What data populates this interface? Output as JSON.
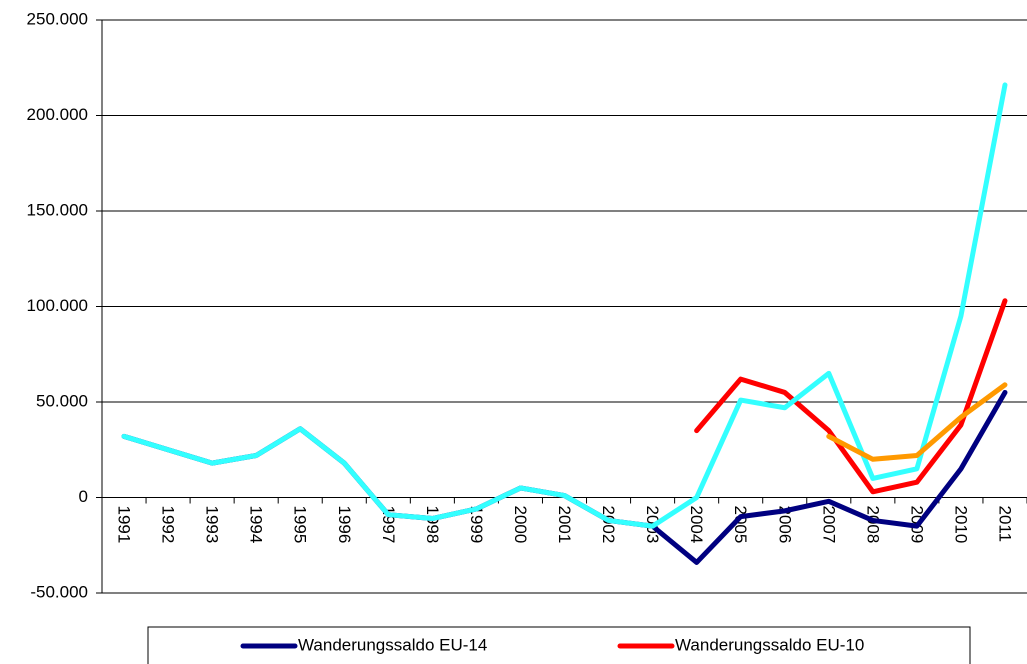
{
  "chart_data": {
    "type": "line",
    "categories": [
      "1991",
      "1992",
      "1993",
      "1994",
      "1995",
      "1996",
      "1997",
      "1998",
      "1999",
      "2000",
      "2001",
      "2002",
      "2003",
      "2004",
      "2005",
      "2006",
      "2007",
      "2008",
      "2009",
      "2010",
      "2011"
    ],
    "series": [
      {
        "name": "Wanderungssaldo EU-14",
        "color": "#000080",
        "values": [
          32000,
          25000,
          18000,
          22000,
          36000,
          18000,
          -9000,
          -11000,
          -6000,
          5000,
          1000,
          -12000,
          -15000,
          -34000,
          -10000,
          -7000,
          -2000,
          -12000,
          -15000,
          15000,
          55000
        ]
      },
      {
        "name": "Wanderungssaldo EU-10",
        "color": "#ff0000",
        "values": [
          null,
          null,
          null,
          null,
          null,
          null,
          null,
          null,
          null,
          null,
          null,
          null,
          null,
          35000,
          62000,
          55000,
          35000,
          3000,
          8000,
          38000,
          103000
        ]
      },
      {
        "color": "#33ffff",
        "values": [
          32000,
          25000,
          18000,
          22000,
          36000,
          18000,
          -9000,
          -11000,
          -6000,
          5000,
          1000,
          -12000,
          -15000,
          0,
          51000,
          47000,
          65000,
          10000,
          15000,
          95000,
          216000
        ]
      },
      {
        "color": "#ff9900",
        "values": [
          null,
          null,
          null,
          null,
          null,
          null,
          null,
          null,
          null,
          null,
          null,
          null,
          null,
          null,
          null,
          null,
          32000,
          20000,
          22000,
          42000,
          59000
        ]
      }
    ],
    "ylim": [
      -50000,
      250000
    ],
    "yticks": [
      {
        "value": -50000,
        "label": "-50.000"
      },
      0,
      {
        "value": 50000,
        "label": "50.000"
      },
      {
        "value": 100000,
        "label": "100.000"
      },
      {
        "value": 150000,
        "label": "150.000"
      },
      {
        "value": 200000,
        "label": "200.000"
      },
      {
        "value": 250000,
        "label": "250.000"
      }
    ],
    "grid": true,
    "legend": "bottom"
  }
}
